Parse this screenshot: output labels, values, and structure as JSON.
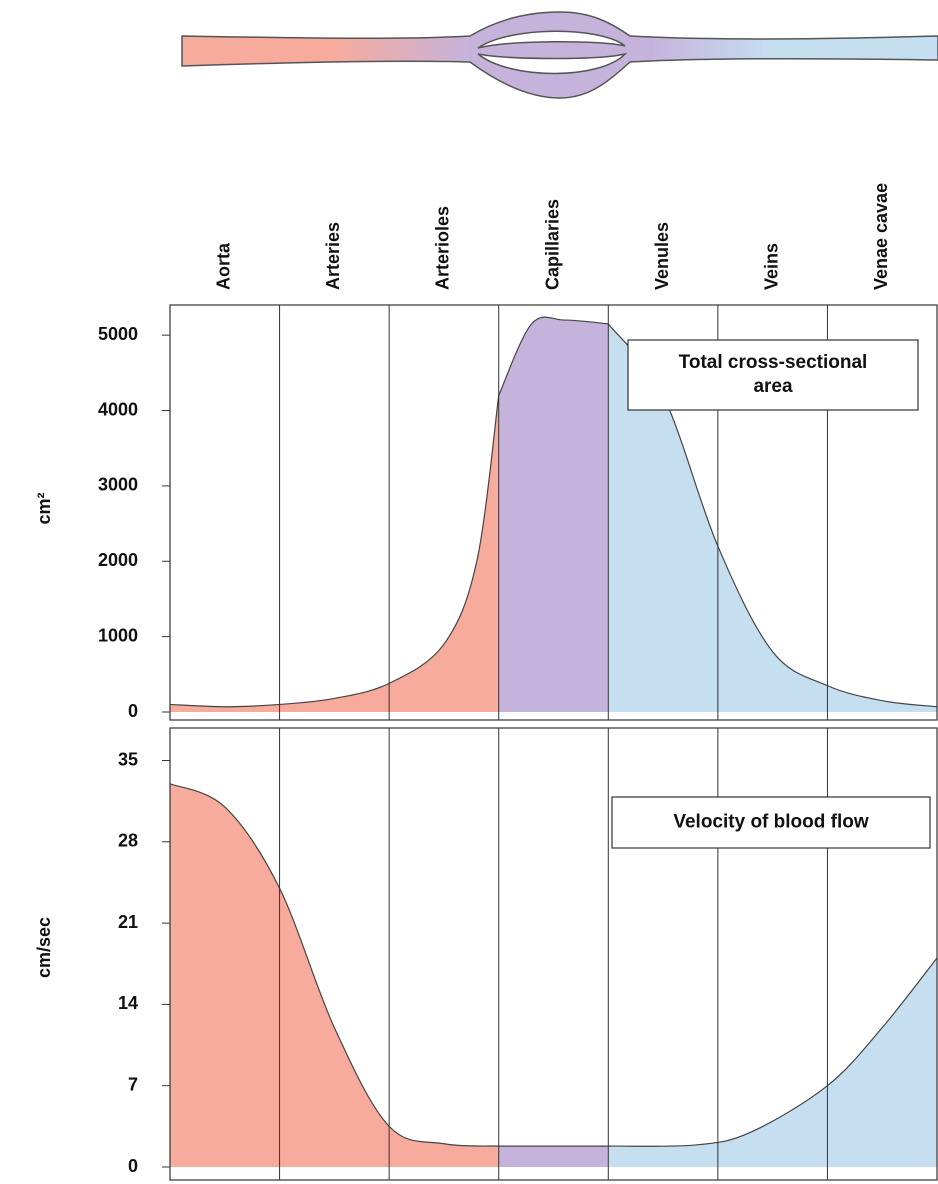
{
  "chart_data": [
    {
      "type": "area",
      "categories": [
        "Aorta",
        "Arteries",
        "Arterioles",
        "Capillaries",
        "Venules",
        "Veins",
        "Venae cavae"
      ],
      "ylabel": "cm²",
      "annotation": [
        "Total cross-sectional",
        "area"
      ],
      "xlim": [
        0,
        7
      ],
      "ylim": [
        0,
        5400
      ],
      "yticks": [
        0,
        1000,
        2000,
        3000,
        4000,
        5000
      ],
      "series": [
        {
          "color": "#f6ab9c",
          "x": [
            0,
            0.5,
            1,
            1.5,
            2,
            2.5,
            2.8,
            3
          ],
          "values": [
            100,
            70,
            100,
            180,
            380,
            900,
            2000,
            4200
          ]
        },
        {
          "color": "#c6b3dc",
          "x": [
            3,
            3.3,
            3.6,
            4
          ],
          "values": [
            4200,
            5150,
            5200,
            5150
          ]
        },
        {
          "color": "#c5def0",
          "x": [
            4,
            4.5,
            5,
            5.5,
            6,
            6.5,
            7
          ],
          "values": [
            5150,
            4200,
            2200,
            800,
            350,
            150,
            70
          ]
        }
      ]
    },
    {
      "type": "area",
      "ylabel": "cm/sec",
      "annotation": [
        "Velocity of blood flow"
      ],
      "xlim": [
        0,
        7
      ],
      "ylim": [
        0,
        37.8
      ],
      "yticks": [
        0,
        7,
        14,
        21,
        28,
        35
      ],
      "series": [
        {
          "color": "#f6ab9c",
          "x": [
            0,
            0.5,
            1,
            1.5,
            2,
            2.5,
            3
          ],
          "values": [
            33,
            31,
            24,
            12,
            3.5,
            2,
            1.8
          ]
        },
        {
          "color": "#c6b3dc",
          "x": [
            3,
            4
          ],
          "values": [
            1.8,
            1.8
          ]
        },
        {
          "color": "#c5def0",
          "x": [
            4,
            4.8,
            5.3,
            6,
            6.5,
            7
          ],
          "values": [
            1.8,
            1.9,
            3,
            7,
            12,
            18
          ]
        }
      ]
    }
  ]
}
